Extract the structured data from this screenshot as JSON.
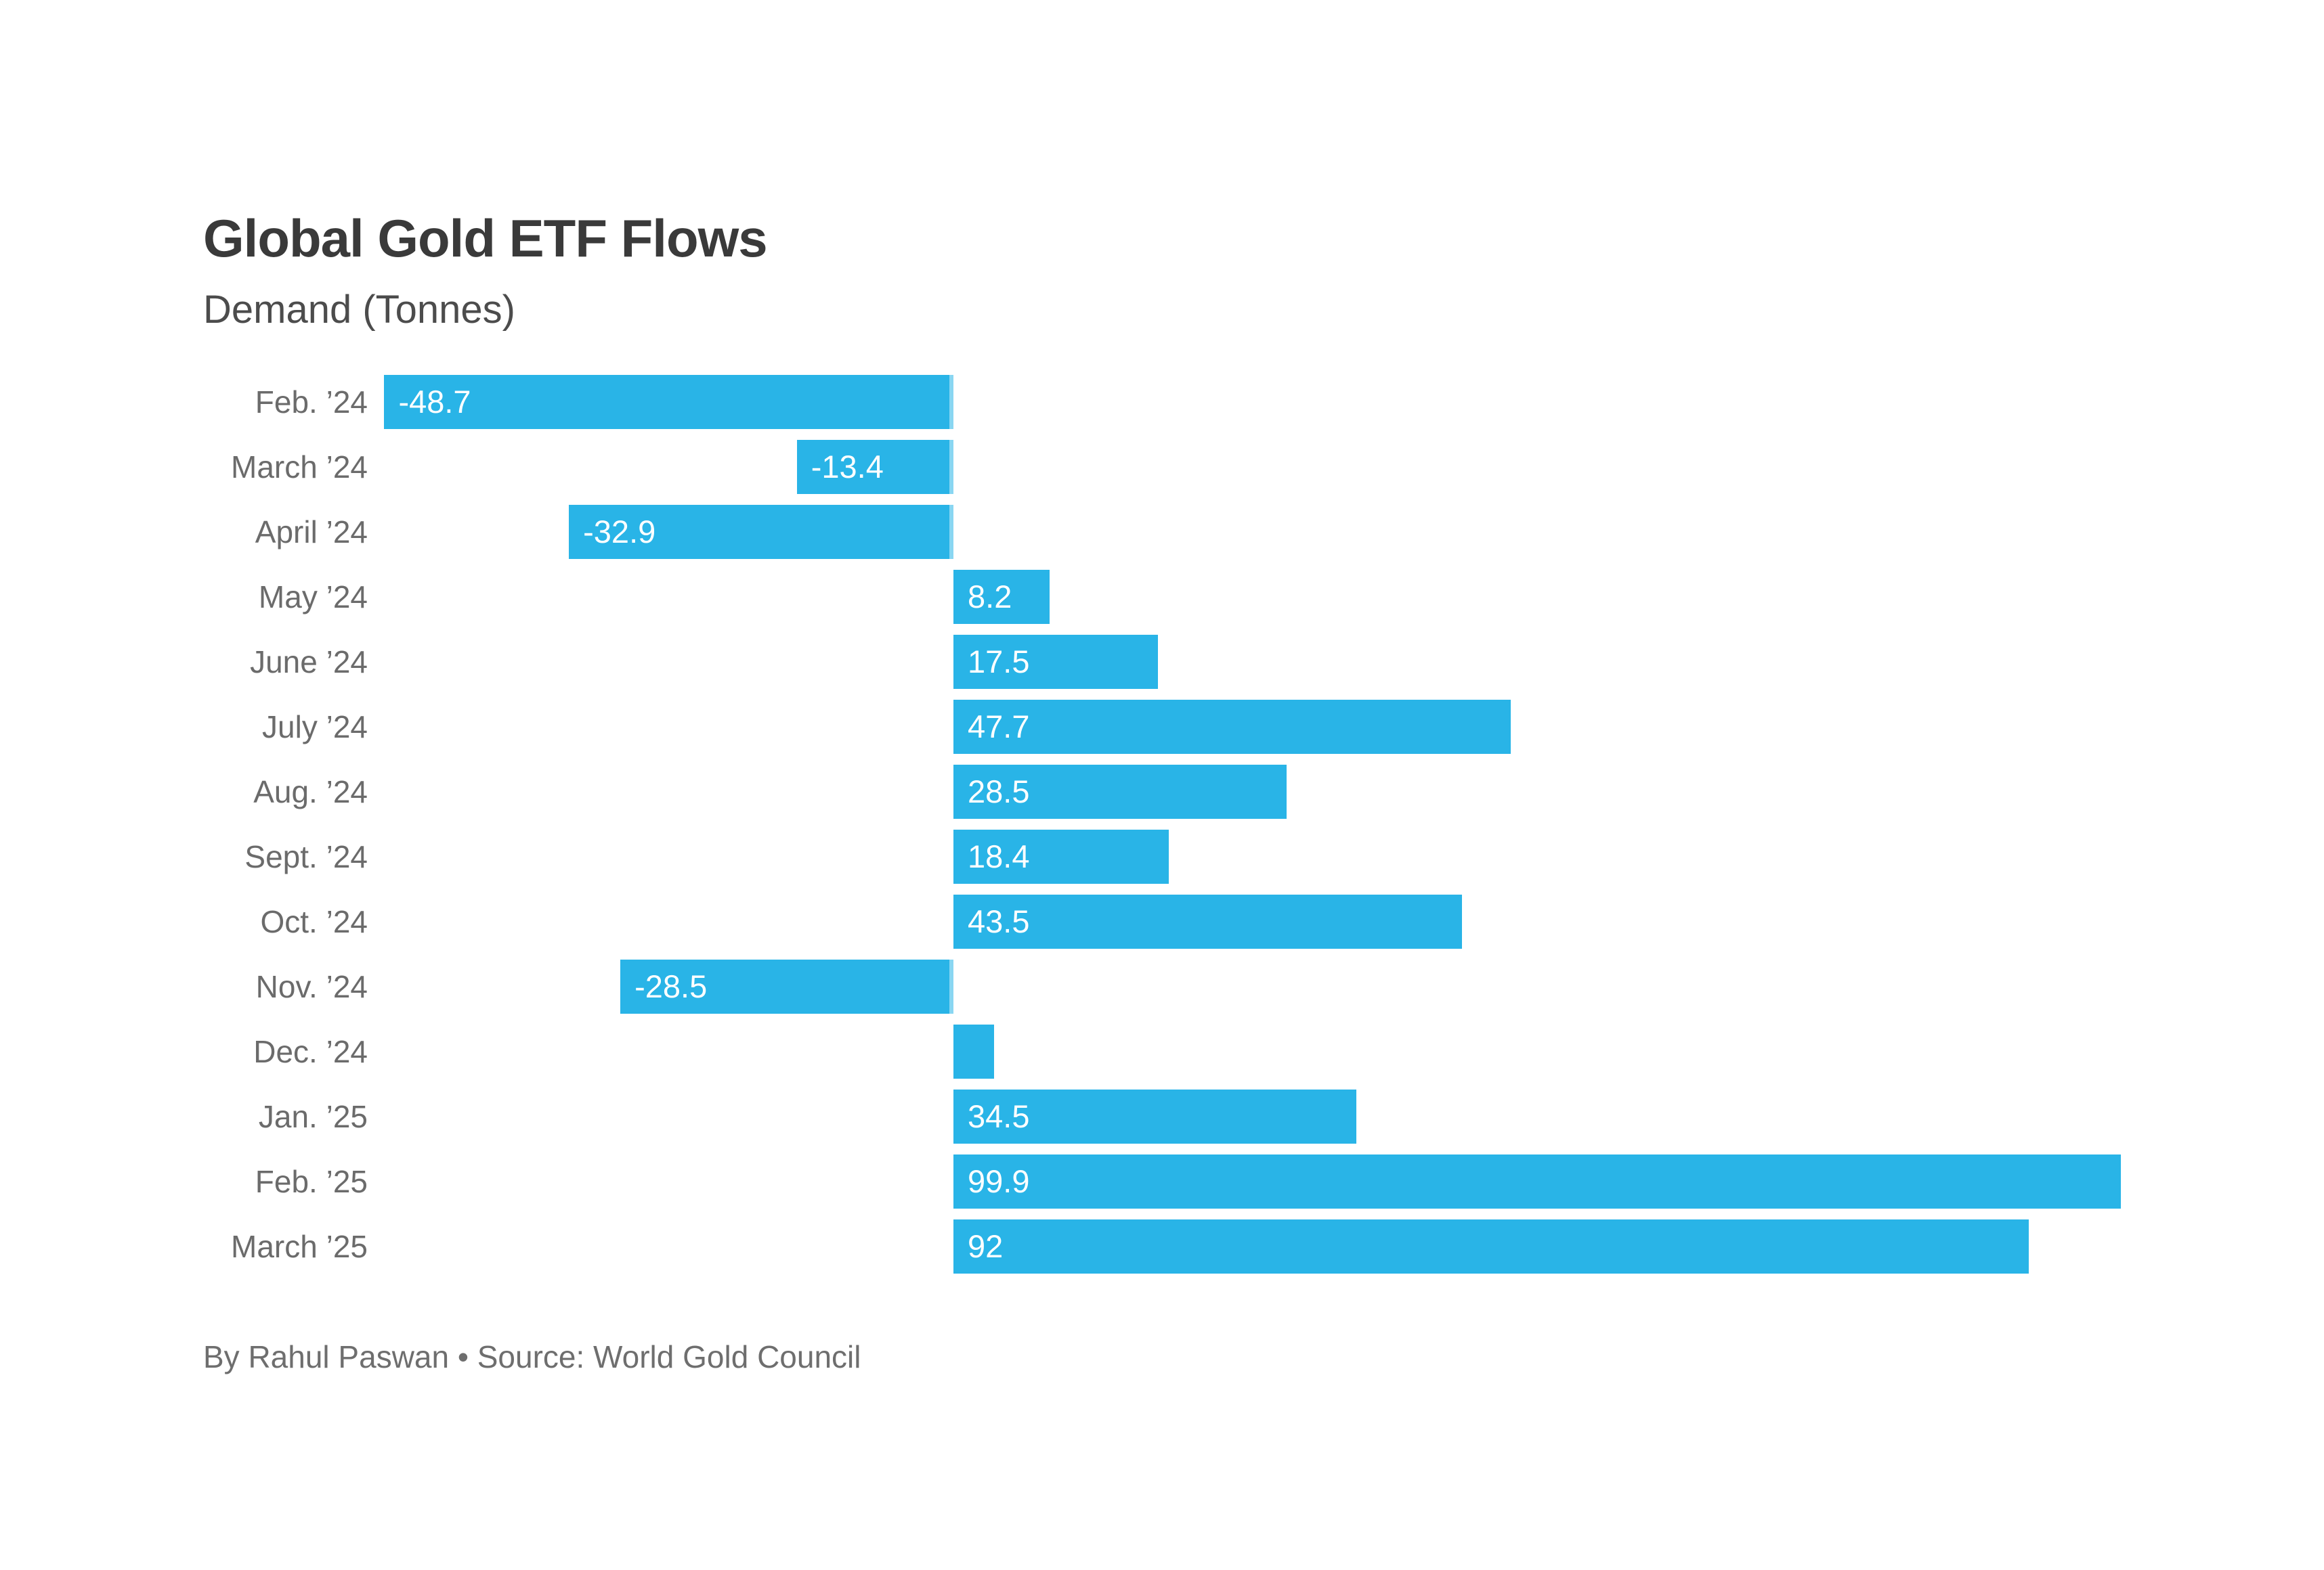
{
  "chart": {
    "title": "Global Gold ETF Flows",
    "subtitle": "Demand (Tonnes)"
  },
  "footer": {
    "byline": "By Rahul Paswan • Source: World Gold Council"
  },
  "chart_data": {
    "type": "bar",
    "orientation": "horizontal",
    "title": "Global Gold ETF Flows",
    "subtitle": "Demand (Tonnes)",
    "units": "Tonnes",
    "categories": [
      "Feb. ’24",
      "March ’24",
      "April ’24",
      "May ’24",
      "June ’24",
      "July ’24",
      "Aug. ’24",
      "Sept. ’24",
      "Oct. ’24",
      "Nov. ’24",
      "Dec. ’24",
      "Jan. ’25",
      "Feb. ’25",
      "March ’25"
    ],
    "values": [
      -48.7,
      -13.4,
      -32.9,
      8.2,
      17.5,
      47.7,
      28.5,
      18.4,
      43.5,
      -28.5,
      3.5,
      34.5,
      99.9,
      92
    ],
    "bar_labels": [
      "-48.7",
      "-13.4",
      "-32.9",
      "8.2",
      "17.5",
      "47.7",
      "28.5",
      "18.4",
      "43.5",
      "-28.5",
      "",
      "34.5",
      "99.9",
      "92"
    ],
    "dec_24_value_estimated_from_bar_length": true,
    "xlim": [
      -49,
      100
    ],
    "grid": false,
    "zero_baseline": true,
    "legend": "none",
    "bar_color": "#29b4e7",
    "category_label_color": "#6b6b6b",
    "value_label_color": "#ffffff"
  }
}
